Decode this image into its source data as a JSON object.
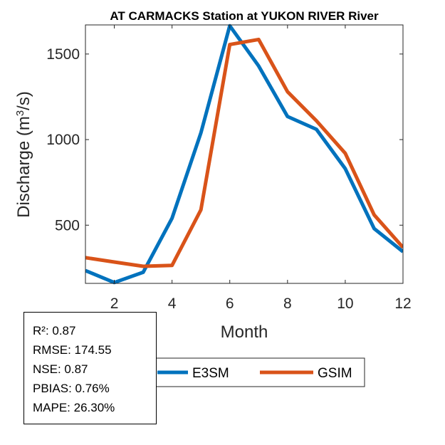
{
  "chart_data": {
    "type": "line",
    "title": "AT CARMACKS  Station at  YUKON RIVER  River",
    "xlabel": "Month",
    "ylabel": "Discharge (m³/s)",
    "ylabel_main": "Discharge (m",
    "ylabel_sup": "3",
    "ylabel_end": "/s)",
    "xlim": [
      1,
      12
    ],
    "ylim": [
      160,
      1670
    ],
    "xticks": [
      2,
      4,
      6,
      8,
      10,
      12
    ],
    "yticks": [
      500,
      1000,
      1500
    ],
    "grid": false,
    "legend_position": "bottom-center",
    "x": [
      1,
      2,
      3,
      4,
      5,
      6,
      7,
      8,
      9,
      10,
      11,
      12
    ],
    "series": [
      {
        "name": "E3SM",
        "color": "#0072BD",
        "values": [
          235,
          165,
          225,
          540,
          1040,
          1665,
          1430,
          1135,
          1060,
          830,
          480,
          345
        ]
      },
      {
        "name": "GSIM",
        "color": "#D95319",
        "values": [
          310,
          285,
          260,
          265,
          590,
          1555,
          1585,
          1280,
          1110,
          920,
          560,
          370
        ]
      }
    ]
  },
  "stats": {
    "r2": "R²: 0.87",
    "rmse": "RMSE: 174.55",
    "nse": "NSE: 0.87",
    "pbias": "PBIAS: 0.76%",
    "mape": "MAPE: 26.30%"
  }
}
